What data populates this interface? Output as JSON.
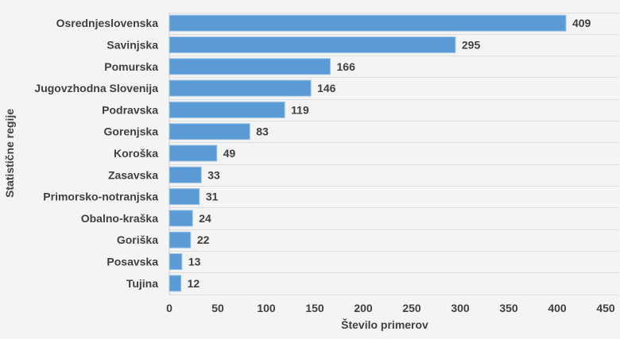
{
  "chart_data": {
    "type": "bar",
    "orientation": "horizontal",
    "categories": [
      "Osrednjeslovenska",
      "Savinjska",
      "Pomurska",
      "Jugovzhodna Slovenija",
      "Podravska",
      "Gorenjska",
      "Koroška",
      "Zasavska",
      "Primorsko-notranjska",
      "Obalno-kraška",
      "Goriška",
      "Posavska",
      "Tujina"
    ],
    "values": [
      409,
      295,
      166,
      146,
      119,
      83,
      49,
      33,
      31,
      24,
      22,
      13,
      12
    ],
    "xlabel": "Število primerov",
    "ylabel": "Statistične regije",
    "xlim": [
      0,
      450
    ],
    "xticks": [
      0,
      50,
      100,
      150,
      200,
      250,
      300,
      350,
      400,
      450
    ],
    "grid": "horizontal category separators",
    "bar_color": "#5b9bd5",
    "data_labels": true
  }
}
